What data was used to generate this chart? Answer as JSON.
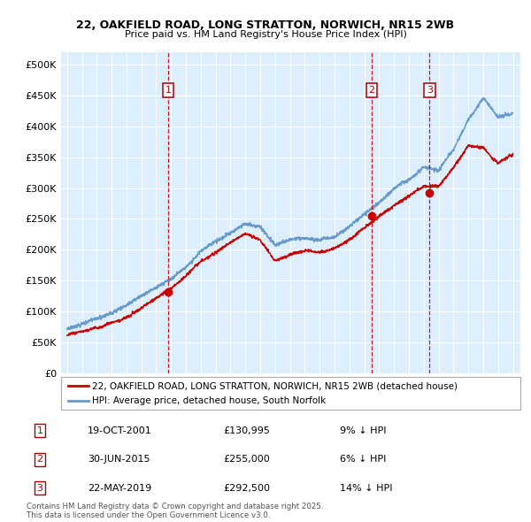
{
  "title_line1": "22, OAKFIELD ROAD, LONG STRATTON, NORWICH, NR15 2WB",
  "title_line2": "Price paid vs. HM Land Registry's House Price Index (HPI)",
  "ylim": [
    0,
    520000
  ],
  "yticks": [
    0,
    50000,
    100000,
    150000,
    200000,
    250000,
    300000,
    350000,
    400000,
    450000,
    500000
  ],
  "ytick_labels": [
    "£0",
    "£50K",
    "£100K",
    "£150K",
    "£200K",
    "£250K",
    "£300K",
    "£350K",
    "£400K",
    "£450K",
    "£500K"
  ],
  "plot_bg": "#ddeeff",
  "hpi_color": "#6699cc",
  "price_color": "#cc0000",
  "vline_color": "#cc0000",
  "sales": [
    {
      "date_x": 2001.8,
      "price": 130995,
      "label": "1"
    },
    {
      "date_x": 2015.49,
      "price": 255000,
      "label": "2"
    },
    {
      "date_x": 2019.39,
      "price": 292500,
      "label": "3"
    }
  ],
  "hpi_anchors_x": [
    1995,
    1996,
    1997,
    1998,
    1999,
    2000,
    2001,
    2002,
    2003,
    2004,
    2005,
    2006,
    2007,
    2008,
    2009,
    2010,
    2011,
    2012,
    2013,
    2014,
    2015,
    2016,
    2017,
    2018,
    2019,
    2020,
    2021,
    2022,
    2023,
    2024,
    2025
  ],
  "hpi_anchors_y": [
    72000,
    80000,
    88000,
    98000,
    110000,
    125000,
    140000,
    155000,
    175000,
    200000,
    215000,
    230000,
    245000,
    240000,
    210000,
    215000,
    218000,
    215000,
    220000,
    235000,
    255000,
    275000,
    295000,
    310000,
    330000,
    325000,
    360000,
    410000,
    445000,
    415000,
    420000
  ],
  "pp_anchors_x": [
    1995,
    1996,
    1997,
    1998,
    1999,
    2000,
    2001,
    2002,
    2003,
    2004,
    2005,
    2006,
    2007,
    2008,
    2009,
    2010,
    2011,
    2012,
    2013,
    2014,
    2015,
    2016,
    2017,
    2018,
    2019,
    2020,
    2021,
    2022,
    2023,
    2024,
    2025
  ],
  "pp_anchors_y": [
    62000,
    68000,
    75000,
    85000,
    95000,
    110000,
    125000,
    140000,
    160000,
    185000,
    200000,
    215000,
    230000,
    220000,
    185000,
    195000,
    200000,
    198000,
    205000,
    220000,
    240000,
    258000,
    275000,
    290000,
    305000,
    305000,
    335000,
    370000,
    365000,
    340000,
    355000
  ],
  "legend_entries": [
    "22, OAKFIELD ROAD, LONG STRATTON, NORWICH, NR15 2WB (detached house)",
    "HPI: Average price, detached house, South Norfolk"
  ],
  "table_rows": [
    [
      "1",
      "19-OCT-2001",
      "£130,995",
      "9% ↓ HPI"
    ],
    [
      "2",
      "30-JUN-2015",
      "£255,000",
      "6% ↓ HPI"
    ],
    [
      "3",
      "22-MAY-2019",
      "£292,500",
      "14% ↓ HPI"
    ]
  ],
  "footnote": "Contains HM Land Registry data © Crown copyright and database right 2025.\nThis data is licensed under the Open Government Licence v3.0.",
  "xmin": 1994.6,
  "xmax": 2025.5
}
